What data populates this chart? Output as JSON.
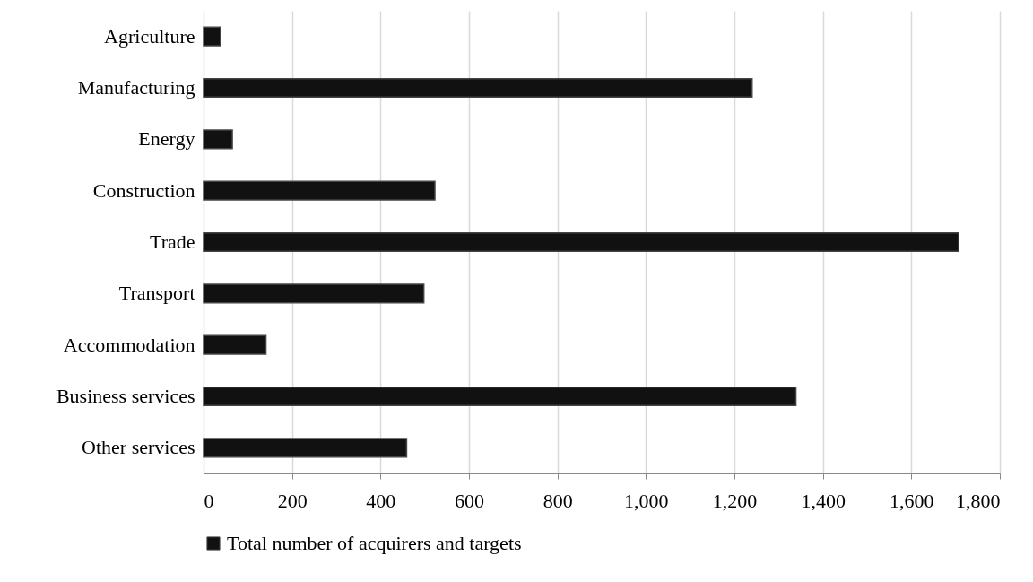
{
  "chart_data": {
    "type": "bar",
    "orientation": "horizontal",
    "categories": [
      "Agriculture",
      "Manufacturing",
      "Energy",
      "Construction",
      "Trade",
      "Transport",
      "Accommodation",
      "Business services",
      "Other services"
    ],
    "series": [
      {
        "name": "Total number of acquirers and targets",
        "color": "#111111",
        "values": [
          38,
          1240,
          65,
          523,
          1707,
          498,
          141,
          1339,
          459
        ]
      }
    ],
    "xlim": [
      0,
      1800
    ],
    "xticks": [
      0,
      {
        "value": 200,
        "label": "200"
      },
      {
        "value": 400,
        "label": "400"
      },
      {
        "value": 600,
        "label": "600"
      },
      {
        "value": 800,
        "label": "800"
      },
      {
        "value": 1000,
        "label": "1,000"
      },
      {
        "value": 1200,
        "label": "1,200"
      },
      {
        "value": 1400,
        "label": "1,400"
      },
      {
        "value": 1600,
        "label": "1,600"
      },
      {
        "value": 1800,
        "label": "1,800"
      }
    ],
    "grid": "x",
    "legend": "bottom"
  }
}
